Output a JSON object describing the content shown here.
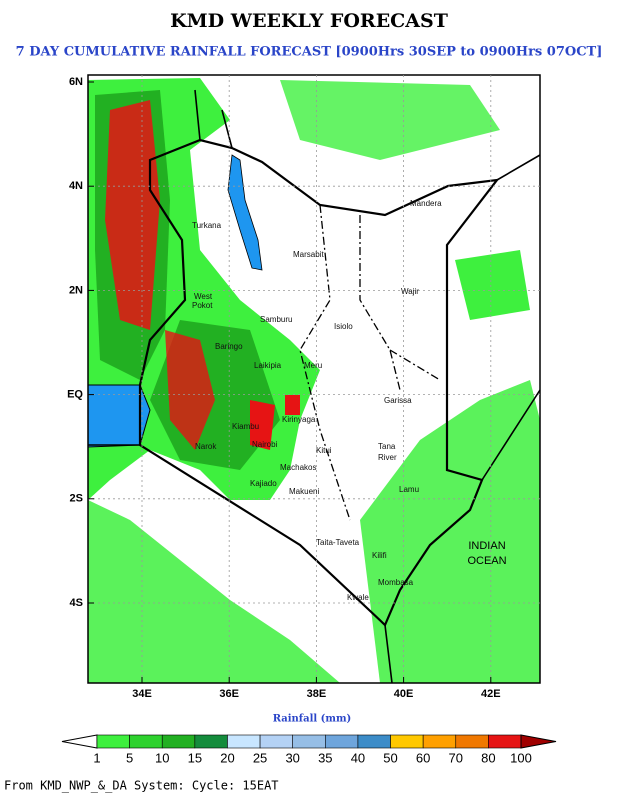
{
  "header": {
    "title": "KMD WEEKLY FORECAST",
    "subtitle": "7 DAY CUMULATIVE RAINFALL FORECAST [0900Hrs 30SEP to 0900Hrs 07OCT]"
  },
  "map": {
    "lat_labels": [
      "6N",
      "4N",
      "2N",
      "EQ",
      "2S",
      "4S"
    ],
    "lon_labels": [
      "34E",
      "36E",
      "38E",
      "40E",
      "42E"
    ],
    "places": [
      "Turkana",
      "Marsabit",
      "Mandera",
      "Wajir",
      "West",
      "Pokot",
      "Samburu",
      "Isiolo",
      "Baringo",
      "Laikipia",
      "Meru",
      "Garissa",
      "Kitui",
      "Tana",
      "River",
      "Machakos",
      "Kajiado",
      "Makueni",
      "Lamu",
      "Taita-Taveta",
      "Kilifi",
      "Mombasa",
      "Kwale",
      "Narok",
      "Nairobi",
      "Kirinyaga",
      "Kiambu"
    ],
    "ocean": [
      "INDIAN",
      "OCEAN"
    ]
  },
  "colorbar": {
    "title": "Rainfall (mm)",
    "labels": [
      "1",
      "5",
      "10",
      "15",
      "20",
      "25",
      "30",
      "35",
      "40",
      "50",
      "60",
      "70",
      "80",
      "100"
    ],
    "colors": [
      "#3ef03e",
      "#2ed22e",
      "#22b022",
      "#148c3c",
      "#c8e6ff",
      "#b4d2f5",
      "#96bee6",
      "#6ea5dc",
      "#3c8cc8",
      "#ffc800",
      "#ffa000",
      "#f07800",
      "#e61414"
    ]
  },
  "footer": "From KMD_NWP_&_DA System: Cycle: 15EAT"
}
